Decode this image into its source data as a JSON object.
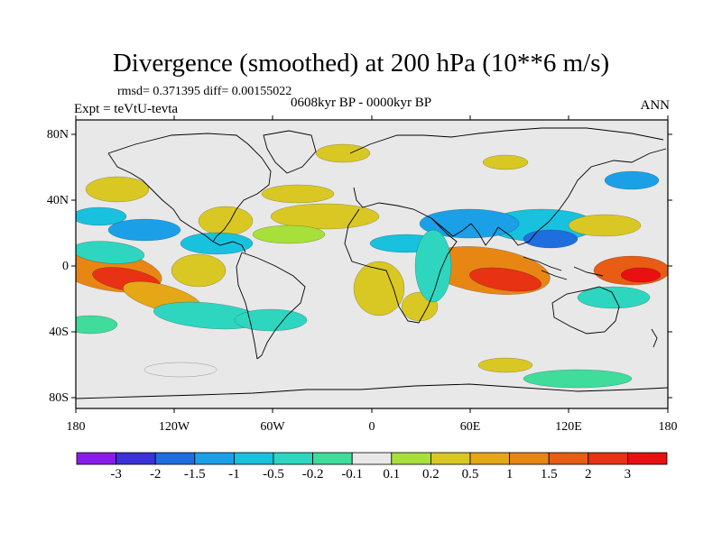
{
  "title": "Divergence (smoothed) at 200 hPa (10**6 m/s)",
  "stats_line": "rmsd= 0.371395 diff= 0.00155022",
  "experiment": "Expt = teVtU-tevta",
  "period": "0608kyr BP - 0000kyr BP",
  "season": "ANN",
  "lat_ticks": [
    "80N",
    "40N",
    "0",
    "40S",
    "80S"
  ],
  "lon_ticks": [
    "180",
    "120W",
    "60W",
    "0",
    "60E",
    "120E",
    "180"
  ],
  "colorbar": {
    "labels": [
      "-3",
      "-2",
      "-1.5",
      "-1",
      "-0.5",
      "-0.2",
      "-0.1",
      "0.1",
      "0.2",
      "0.5",
      "1",
      "1.5",
      "2",
      "3"
    ],
    "colors": [
      "#8a1bea",
      "#3a32d8",
      "#1f6ee0",
      "#1ba0e8",
      "#18c1de",
      "#2ed6c0",
      "#3fdc9c",
      "#e8e8e8",
      "#a8e03a",
      "#d9c824",
      "#e5a716",
      "#e88614",
      "#e85c14",
      "#e83214",
      "#e81010"
    ]
  },
  "map_colors": {
    "background": "#e8e8e8",
    "coast": "#000000"
  }
}
